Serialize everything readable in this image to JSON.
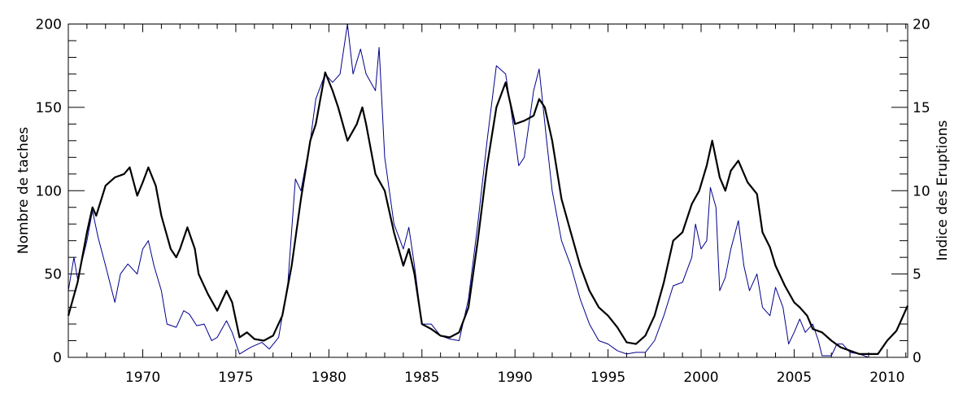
{
  "chart_data": {
    "type": "line",
    "title": "",
    "xlabel": "",
    "ylabel": "Nombre de taches",
    "y2label": "Indice des Eruptions",
    "xlim": [
      1966.0,
      2011.1
    ],
    "ylim": [
      0,
      200
    ],
    "y2lim": [
      0,
      20
    ],
    "grid": false,
    "x_ticks": [
      "1970",
      "1975",
      "1980",
      "1985",
      "1990",
      "1995",
      "2000",
      "2005",
      "2010"
    ],
    "y_ticks": [
      "0",
      "50",
      "100",
      "150",
      "200"
    ],
    "y2_ticks": [
      "0",
      "5",
      "10",
      "15",
      "20"
    ],
    "colors": {
      "sunspots": "#000000",
      "flares": "#00008b"
    },
    "series": [
      {
        "name": "Nombre de taches",
        "axis": "left",
        "color": "#000000",
        "x": [
          1966.0,
          1966.5,
          1967.0,
          1967.3,
          1967.5,
          1968.0,
          1968.5,
          1969.0,
          1969.3,
          1969.7,
          1970.0,
          1970.3,
          1970.7,
          1971.0,
          1971.5,
          1971.8,
          1972.0,
          1972.4,
          1972.8,
          1973.0,
          1973.5,
          1974.0,
          1974.5,
          1974.8,
          1975.2,
          1975.6,
          1976.0,
          1976.5,
          1977.0,
          1977.5,
          1978.0,
          1978.5,
          1979.0,
          1979.3,
          1979.8,
          1980.2,
          1980.5,
          1981.0,
          1981.5,
          1981.8,
          1982.0,
          1982.5,
          1983.0,
          1983.5,
          1984.0,
          1984.3,
          1984.6,
          1985.0,
          1985.5,
          1986.0,
          1986.5,
          1987.0,
          1987.5,
          1988.0,
          1988.5,
          1989.0,
          1989.5,
          1990.0,
          1990.5,
          1991.0,
          1991.3,
          1991.6,
          1992.0,
          1992.5,
          1993.0,
          1993.5,
          1994.0,
          1994.5,
          1995.0,
          1995.5,
          1996.0,
          1996.5,
          1997.0,
          1997.5,
          1998.0,
          1998.5,
          1999.0,
          1999.5,
          1999.9,
          2000.3,
          2000.6,
          2001.0,
          2001.3,
          2001.6,
          2002.0,
          2002.5,
          2003.0,
          2003.3,
          2003.7,
          2004.0,
          2004.5,
          2005.0,
          2005.3,
          2005.7,
          2006.0,
          2006.5,
          2007.0,
          2007.5,
          2008.0,
          2008.5,
          2009.0,
          2009.5,
          2010.0,
          2010.5,
          2011.1
        ],
        "values": [
          25,
          45,
          75,
          90,
          85,
          103,
          108,
          110,
          114,
          97,
          105,
          114,
          103,
          85,
          65,
          60,
          65,
          78,
          65,
          50,
          38,
          28,
          40,
          33,
          12,
          15,
          11,
          10,
          13,
          25,
          55,
          95,
          130,
          140,
          171,
          160,
          150,
          130,
          140,
          150,
          140,
          110,
          100,
          75,
          55,
          65,
          50,
          20,
          17,
          13,
          12,
          15,
          30,
          70,
          115,
          150,
          165,
          140,
          142,
          145,
          155,
          150,
          130,
          95,
          75,
          55,
          40,
          30,
          25,
          18,
          9,
          8,
          13,
          25,
          45,
          70,
          75,
          92,
          100,
          115,
          130,
          108,
          100,
          112,
          118,
          105,
          98,
          75,
          66,
          55,
          43,
          33,
          30,
          25,
          17,
          15,
          10,
          6,
          4,
          2,
          2,
          2,
          10,
          16,
          31
        ]
      },
      {
        "name": "Indice des Eruptions",
        "axis": "right",
        "color": "#00008b",
        "x": [
          1966.0,
          1966.3,
          1966.5,
          1967.0,
          1967.3,
          1967.6,
          1968.0,
          1968.5,
          1968.8,
          1969.2,
          1969.7,
          1970.0,
          1970.3,
          1970.6,
          1971.0,
          1971.3,
          1971.8,
          1972.2,
          1972.5,
          1972.9,
          1973.3,
          1973.7,
          1974.0,
          1974.5,
          1974.8,
          1975.2,
          1975.8,
          1976.4,
          1976.8,
          1977.3,
          1977.8,
          1978.2,
          1978.5,
          1979.0,
          1979.3,
          1979.8,
          1980.2,
          1980.6,
          1981.0,
          1981.3,
          1981.7,
          1982.0,
          1982.5,
          1982.7,
          1983.0,
          1983.5,
          1984.0,
          1984.3,
          1984.6,
          1985.0,
          1985.5,
          1986.0,
          1986.5,
          1987.0,
          1987.5,
          1988.0,
          1988.5,
          1989.0,
          1989.5,
          1989.9,
          1990.2,
          1990.5,
          1991.0,
          1991.3,
          1991.7,
          1992.0,
          1992.5,
          1993.0,
          1993.5,
          1994.0,
          1994.5,
          1995.0,
          1995.5,
          1996.0,
          1996.5,
          1997.0,
          1997.5,
          1998.0,
          1998.5,
          1999.0,
          1999.5,
          1999.7,
          2000.0,
          2000.3,
          2000.5,
          2000.8,
          2001.0,
          2001.3,
          2001.6,
          2002.0,
          2002.3,
          2002.6,
          2003.0,
          2003.3,
          2003.7,
          2004.0,
          2004.4,
          2004.7,
          2005.0,
          2005.3,
          2005.6,
          2006.0,
          2006.3,
          2006.5,
          2007.0,
          2007.3,
          2007.6,
          2008.0,
          2008.5,
          2009.0
        ],
        "values": [
          4.0,
          6.0,
          4.7,
          7.0,
          8.8,
          7.2,
          5.5,
          3.3,
          5.0,
          5.6,
          5.0,
          6.5,
          7.0,
          5.5,
          4.0,
          2.0,
          1.8,
          2.8,
          2.6,
          1.9,
          2.0,
          1.0,
          1.2,
          2.2,
          1.5,
          0.2,
          0.6,
          0.9,
          0.5,
          1.2,
          4.5,
          10.7,
          10.0,
          13.0,
          15.5,
          17.0,
          16.5,
          17.0,
          20.0,
          17.0,
          18.5,
          17.0,
          16.0,
          18.6,
          12.0,
          8.0,
          6.5,
          7.8,
          5.5,
          2.0,
          2.0,
          1.3,
          1.1,
          1.0,
          3.5,
          8.0,
          13.0,
          17.5,
          17.0,
          14.0,
          11.5,
          12.0,
          16.0,
          17.3,
          13.0,
          10.0,
          7.0,
          5.5,
          3.5,
          2.0,
          1.0,
          0.8,
          0.4,
          0.2,
          0.3,
          0.3,
          1.0,
          2.5,
          4.3,
          4.5,
          6.0,
          8.0,
          6.5,
          7.0,
          10.2,
          9.0,
          4.0,
          4.8,
          6.5,
          8.2,
          5.5,
          4.0,
          5.0,
          3.0,
          2.5,
          4.2,
          3.0,
          0.8,
          1.5,
          2.3,
          1.5,
          2.0,
          1.0,
          0.1,
          0.1,
          0.8,
          0.8,
          0.3,
          0.2,
          0.0
        ]
      }
    ]
  }
}
